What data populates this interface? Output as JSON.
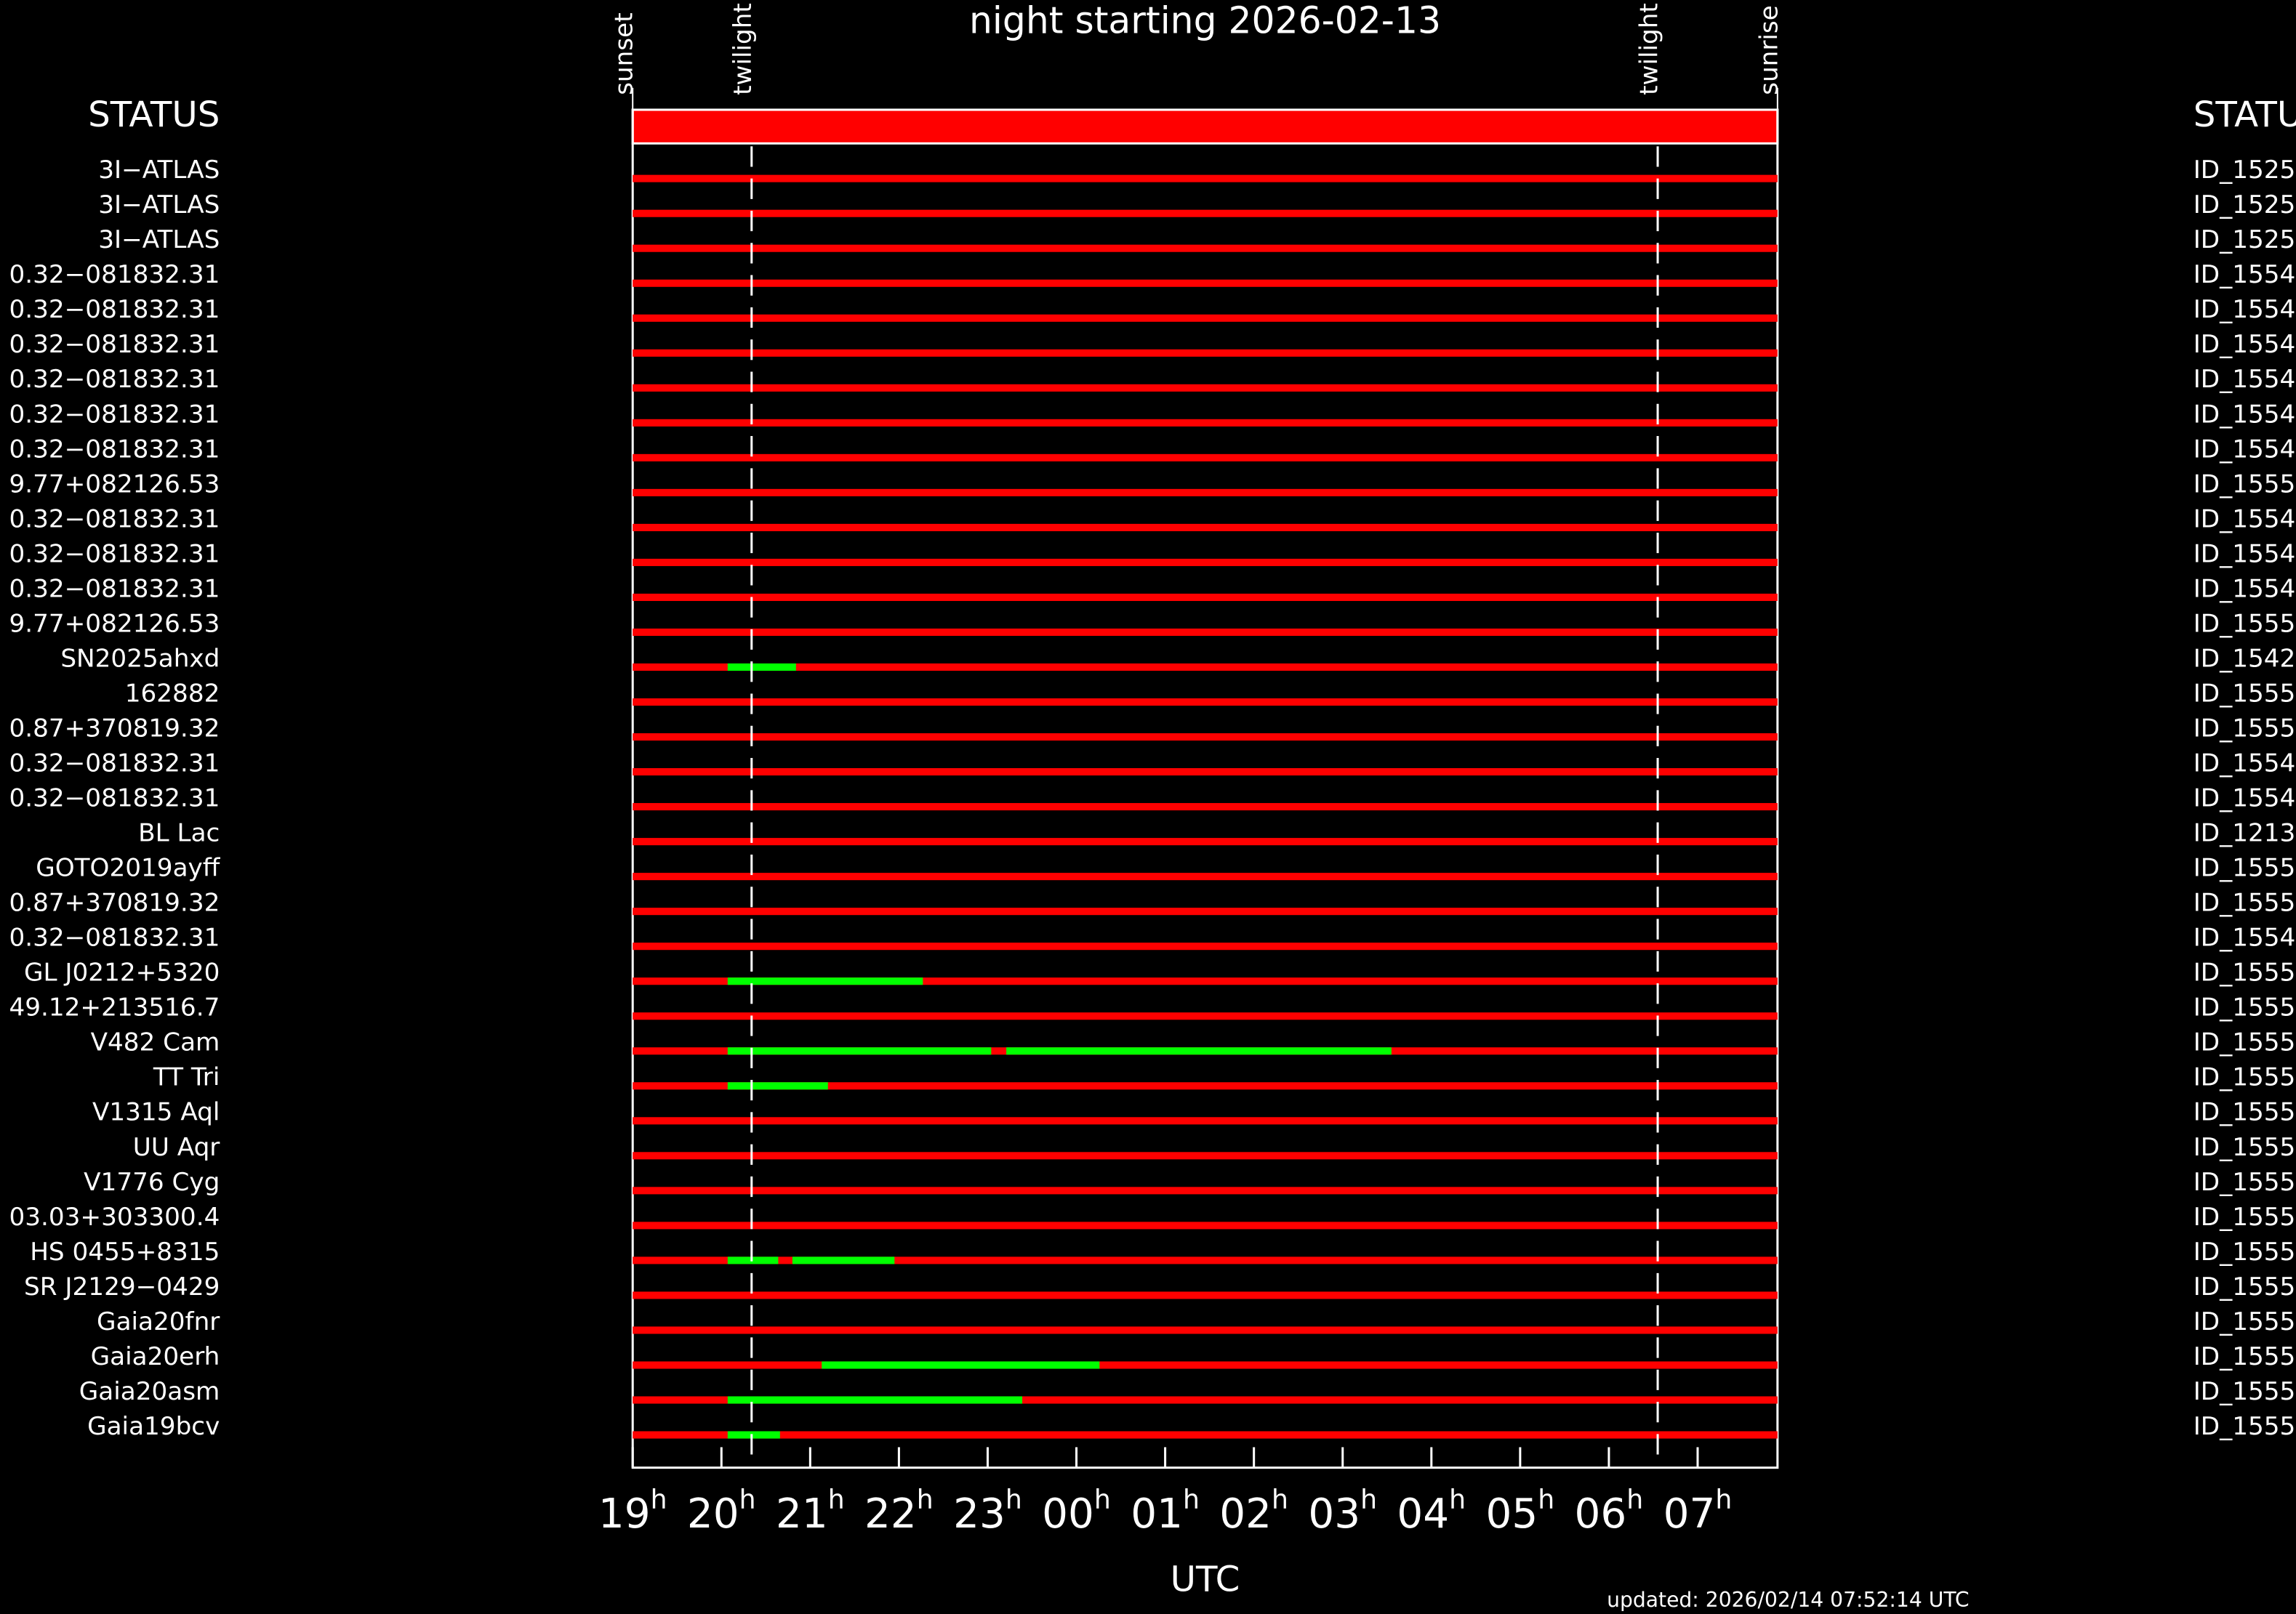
{
  "chart_data": {
    "type": "gantt",
    "title": "night starting 2026-02-13",
    "xlabel": "UTC",
    "updated": "updated: 2026/02/14 07:52:14 UTC",
    "status_left": "STATUS",
    "status_right": "STATU",
    "xlim": [
      19,
      31.9
    ],
    "xticks": [
      19,
      20,
      21,
      22,
      23,
      {
        "value": 24,
        "label": "00"
      },
      {
        "value": 25,
        "label": "01"
      },
      {
        "value": 26,
        "label": "02"
      },
      {
        "value": 27,
        "label": "03"
      },
      {
        "value": 28,
        "label": "04"
      },
      {
        "value": 29,
        "label": "05"
      },
      {
        "value": 30,
        "label": "06"
      },
      {
        "value": 31,
        "label": "07"
      }
    ],
    "x_tick_unit": "h",
    "markers": [
      {
        "label": "sunset",
        "x": 19,
        "dashed": false
      },
      {
        "label": "twilight",
        "x": 20.34,
        "dashed": true
      },
      {
        "label": "twilight",
        "x": 30.55,
        "dashed": true
      },
      {
        "label": "sunrise",
        "x": 31.9,
        "dashed": false
      }
    ],
    "bar_color": "#ff0000",
    "window_color": "#00ff00",
    "rows": [
      {
        "name": "3I−ATLAS",
        "id": "ID_1525",
        "windows": []
      },
      {
        "name": "3I−ATLAS",
        "id": "ID_1525",
        "windows": []
      },
      {
        "name": "3I−ATLAS",
        "id": "ID_1525",
        "windows": []
      },
      {
        "name": "0.32−081832.31",
        "id": "ID_1554",
        "windows": []
      },
      {
        "name": "0.32−081832.31",
        "id": "ID_1554",
        "windows": []
      },
      {
        "name": "0.32−081832.31",
        "id": "ID_1554",
        "windows": []
      },
      {
        "name": "0.32−081832.31",
        "id": "ID_1554",
        "windows": []
      },
      {
        "name": "0.32−081832.31",
        "id": "ID_1554",
        "windows": []
      },
      {
        "name": "0.32−081832.31",
        "id": "ID_1554",
        "windows": []
      },
      {
        "name": "9.77+082126.53",
        "id": "ID_1555",
        "windows": []
      },
      {
        "name": "0.32−081832.31",
        "id": "ID_1554",
        "windows": []
      },
      {
        "name": "0.32−081832.31",
        "id": "ID_1554",
        "windows": []
      },
      {
        "name": "0.32−081832.31",
        "id": "ID_1554",
        "windows": []
      },
      {
        "name": "9.77+082126.53",
        "id": "ID_1555",
        "windows": []
      },
      {
        "name": "SN2025ahxd",
        "id": "ID_1542",
        "windows": [
          [
            20.07,
            20.84
          ]
        ]
      },
      {
        "name": "162882",
        "id": "ID_1555",
        "windows": []
      },
      {
        "name": "0.87+370819.32",
        "id": "ID_1555",
        "windows": []
      },
      {
        "name": "0.32−081832.31",
        "id": "ID_1554",
        "windows": []
      },
      {
        "name": "0.32−081832.31",
        "id": "ID_1554",
        "windows": []
      },
      {
        "name": "BL Lac",
        "id": "ID_1213",
        "windows": []
      },
      {
        "name": "GOTO2019ayff",
        "id": "ID_1555",
        "windows": []
      },
      {
        "name": "0.87+370819.32",
        "id": "ID_1555",
        "windows": []
      },
      {
        "name": "0.32−081832.31",
        "id": "ID_1554",
        "windows": []
      },
      {
        "name": "GL J0212+5320",
        "id": "ID_1555",
        "windows": [
          [
            20.07,
            22.27
          ]
        ]
      },
      {
        "name": "49.12+213516.7",
        "id": "ID_1555",
        "windows": []
      },
      {
        "name": "V482 Cam",
        "id": "ID_1555",
        "windows": [
          [
            20.07,
            23.04
          ],
          [
            23.21,
            27.55
          ]
        ]
      },
      {
        "name": "TT Tri",
        "id": "ID_1555",
        "windows": [
          [
            20.07,
            21.2
          ]
        ]
      },
      {
        "name": "V1315 Aql",
        "id": "ID_1555",
        "windows": []
      },
      {
        "name": "UU Aqr",
        "id": "ID_1555",
        "windows": []
      },
      {
        "name": "V1776 Cyg",
        "id": "ID_1555",
        "windows": []
      },
      {
        "name": "03.03+303300.4",
        "id": "ID_1555",
        "windows": []
      },
      {
        "name": "HS 0455+8315",
        "id": "ID_1555",
        "windows": [
          [
            20.07,
            20.64
          ],
          [
            20.8,
            21.95
          ]
        ]
      },
      {
        "name": "SR J2129−0429",
        "id": "ID_1555",
        "windows": []
      },
      {
        "name": "Gaia20fnr",
        "id": "ID_1555",
        "windows": []
      },
      {
        "name": "Gaia20erh",
        "id": "ID_1555",
        "windows": [
          [
            21.13,
            24.26
          ]
        ]
      },
      {
        "name": "Gaia20asm",
        "id": "ID_1555",
        "windows": [
          [
            20.07,
            23.39
          ]
        ]
      },
      {
        "name": "Gaia19bcv",
        "id": "ID_1555",
        "windows": [
          [
            20.07,
            20.66
          ]
        ]
      }
    ]
  }
}
